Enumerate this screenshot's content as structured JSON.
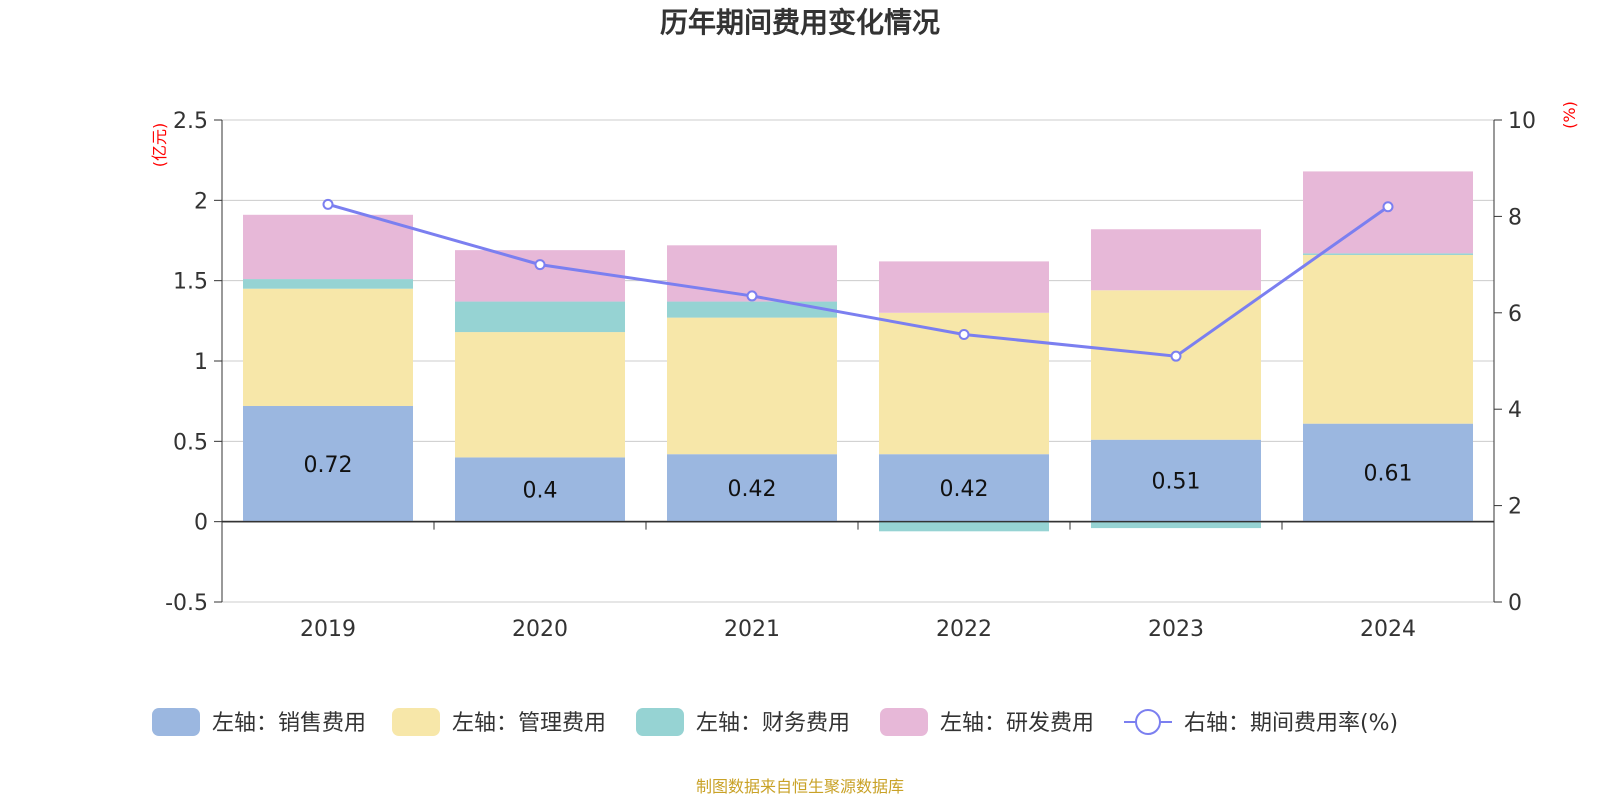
{
  "chart_data": {
    "type": "bar",
    "title": "历年期间费用变化情况",
    "categories": [
      "2019",
      "2020",
      "2021",
      "2022",
      "2023",
      "2024"
    ],
    "left_axis": {
      "unit": "(亿元)",
      "ylim": [
        -0.5,
        2.5
      ],
      "ticks": [
        "2.5",
        "2",
        "1.5",
        "1",
        "0.5",
        "0",
        "-0.5"
      ],
      "tick_values": [
        2.5,
        2,
        1.5,
        1,
        0.5,
        0,
        -0.5
      ]
    },
    "right_axis": {
      "unit": "(%)",
      "ylim": [
        0,
        10
      ],
      "ticks": [
        "10",
        "8",
        "6",
        "4",
        "2",
        "0"
      ],
      "tick_values": [
        10,
        8,
        6,
        4,
        2,
        0
      ]
    },
    "series": [
      {
        "name": "左轴：销售费用",
        "kind": "bar",
        "stack": true,
        "color": "#9bb7e0",
        "values": [
          0.72,
          0.4,
          0.42,
          0.42,
          0.51,
          0.61
        ],
        "data_labels": [
          "0.72",
          "0.4",
          "0.42",
          "0.42",
          "0.51",
          "0.61"
        ]
      },
      {
        "name": "左轴：管理费用",
        "kind": "bar",
        "stack": true,
        "color": "#f7e7a9",
        "values": [
          0.73,
          0.78,
          0.85,
          0.88,
          0.93,
          1.05
        ]
      },
      {
        "name": "左轴：财务费用",
        "kind": "bar",
        "stack": true,
        "color": "#96d3d3",
        "values": [
          0.06,
          0.19,
          0.1,
          -0.06,
          -0.04,
          0.01
        ]
      },
      {
        "name": "左轴：研发费用",
        "kind": "bar",
        "stack": true,
        "color": "#e7b8d8",
        "values": [
          0.4,
          0.32,
          0.35,
          0.32,
          0.38,
          0.51
        ]
      },
      {
        "name": "右轴：期间费用率(%)",
        "kind": "line",
        "axis": "right",
        "color": "#7b7ff0",
        "values": [
          8.25,
          7.0,
          6.35,
          5.55,
          5.1,
          8.2
        ]
      }
    ],
    "grid": true,
    "legend_position": "bottom"
  },
  "source_note": "制图数据来自恒生聚源数据库"
}
